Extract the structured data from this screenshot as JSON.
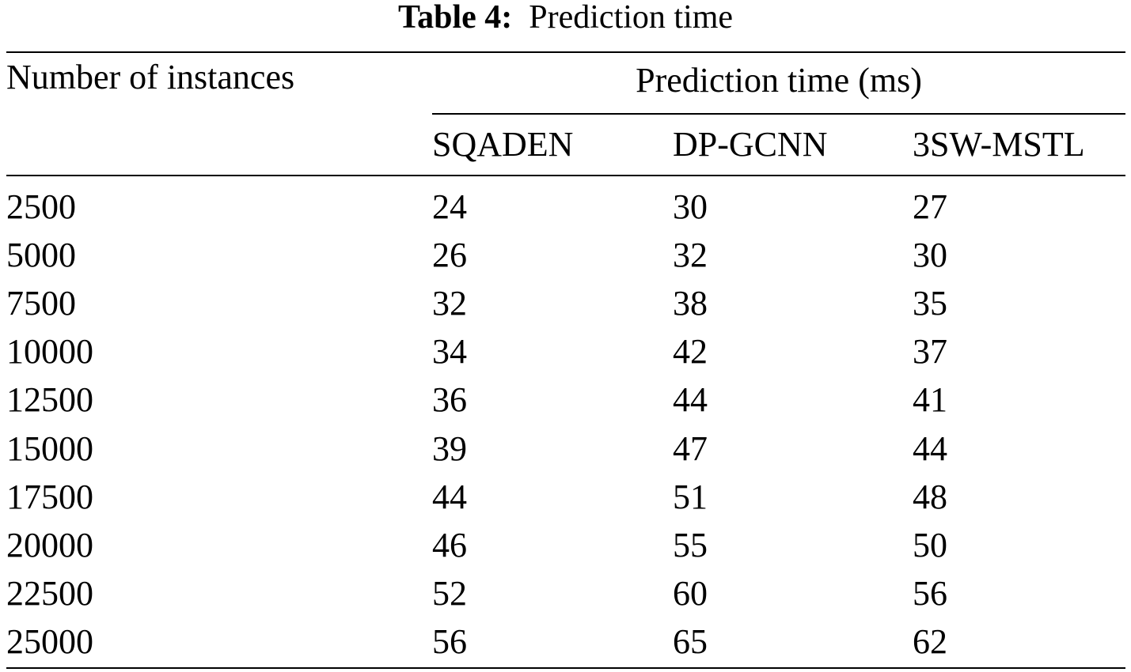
{
  "caption": {
    "label": "Table 4:",
    "text": "Prediction time"
  },
  "table": {
    "row_header": "Number of instances",
    "group_header": "Prediction time (ms)",
    "columns": [
      "SQADEN",
      "DP-GCNN",
      "3SW-MSTL"
    ],
    "rows": [
      [
        2500,
        24,
        30,
        27
      ],
      [
        5000,
        26,
        32,
        30
      ],
      [
        7500,
        32,
        38,
        35
      ],
      [
        10000,
        34,
        42,
        37
      ],
      [
        12500,
        36,
        44,
        41
      ],
      [
        15000,
        39,
        47,
        44
      ],
      [
        17500,
        44,
        51,
        48
      ],
      [
        20000,
        46,
        55,
        50
      ],
      [
        22500,
        52,
        60,
        56
      ],
      [
        25000,
        56,
        65,
        62
      ]
    ]
  }
}
